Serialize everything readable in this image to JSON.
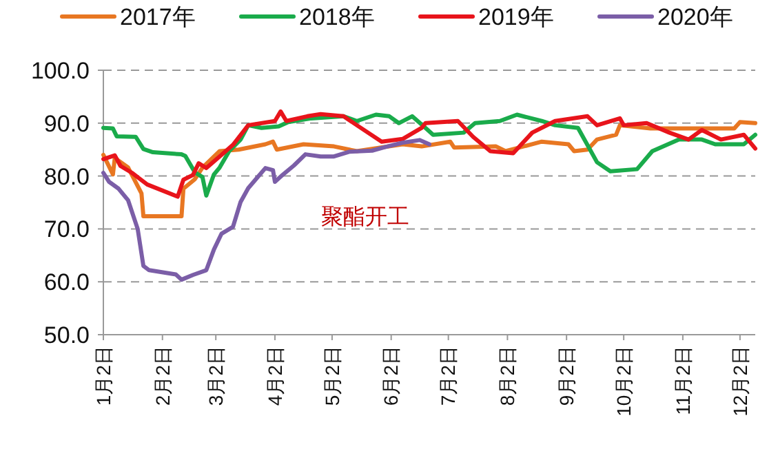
{
  "chart_data": {
    "type": "line",
    "annotations": [
      "聚酯开工"
    ],
    "legend": "top",
    "grid": "y",
    "line_style": "solid",
    "marker": "none",
    "xlim": [
      "--01-02",
      "--12-10"
    ],
    "xticks": [
      {
        "value": "--01-02",
        "label": "1月2日"
      },
      {
        "value": "--02-02",
        "label": "2月2日"
      },
      {
        "value": "--03-02",
        "label": "3月2日"
      },
      {
        "value": "--04-02",
        "label": "4月2日"
      },
      {
        "value": "--05-02",
        "label": "5月2日"
      },
      {
        "value": "--06-02",
        "label": "6月2日"
      },
      {
        "value": "--07-02",
        "label": "7月2日"
      },
      {
        "value": "--08-02",
        "label": "8月2日"
      },
      {
        "value": "--09-02",
        "label": "9月2日"
      },
      {
        "value": "--10-02",
        "label": "10月2日"
      },
      {
        "value": "--11-02",
        "label": "11月2日"
      },
      {
        "value": "--12-02",
        "label": "12月2日"
      }
    ],
    "ylim": [
      50,
      100
    ],
    "yticks": [
      {
        "value": 50,
        "label": "50.0"
      },
      {
        "value": 60,
        "label": "60.0"
      },
      {
        "value": 70,
        "label": "70.0"
      },
      {
        "value": 80,
        "label": "80.0"
      },
      {
        "value": 90,
        "label": "90.0"
      },
      {
        "value": 100,
        "label": "100.0"
      }
    ],
    "series": [
      {
        "name": "2017年",
        "color": "#e87722",
        "x": [
          "--01-02",
          "--01-07",
          "--01-08",
          "--01-15",
          "--01-22",
          "--01-23",
          "--02-12",
          "--02-13",
          "--02-19",
          "--02-23",
          "--03-04",
          "--03-14",
          "--03-28",
          "--04-01",
          "--04-03",
          "--04-17",
          "--05-03",
          "--05-15",
          "--06-08",
          "--06-18",
          "--07-03",
          "--07-05",
          "--07-27",
          "--08-01",
          "--08-20",
          "--09-03",
          "--09-06",
          "--09-13",
          "--09-18",
          "--09-28",
          "--09-30",
          "--10-16",
          "--11-29",
          "--12-02",
          "--12-10"
        ],
        "values": [
          84,
          80.3,
          83.4,
          81.6,
          76.7,
          72.4,
          72.4,
          77.6,
          79.4,
          81.6,
          84.7,
          85,
          86,
          86.5,
          85,
          86,
          85.6,
          84.7,
          86,
          85.6,
          86.5,
          85.4,
          85.6,
          84.7,
          86.5,
          86,
          84.7,
          85,
          86.9,
          87.8,
          89.6,
          89,
          89,
          90.2,
          90
        ]
      },
      {
        "name": "2018年",
        "color": "#1aab4b",
        "x": [
          "--01-02",
          "--01-07",
          "--01-09",
          "--01-19",
          "--01-23",
          "--01-28",
          "--02-12",
          "--02-14",
          "--02-19",
          "--02-23",
          "--02-25",
          "--03-01",
          "--03-04",
          "--03-09",
          "--03-15",
          "--03-19",
          "--03-26",
          "--04-04",
          "--04-09",
          "--04-21",
          "--05-08",
          "--05-15",
          "--05-25",
          "--06-01",
          "--06-06",
          "--06-13",
          "--06-20",
          "--06-24",
          "--07-10",
          "--07-16",
          "--07-29",
          "--08-07",
          "--08-20",
          "--08-27",
          "--09-08",
          "--09-18",
          "--09-25",
          "--10-09",
          "--10-17",
          "--10-31",
          "--11-12",
          "--11-19",
          "--12-04",
          "--12-10"
        ],
        "values": [
          89.1,
          89,
          87.5,
          87.4,
          85.1,
          84.5,
          84.1,
          83.8,
          80.7,
          79.8,
          76.3,
          80.3,
          81.6,
          84.7,
          86.9,
          89.6,
          89.1,
          89.4,
          90.2,
          90.9,
          91.3,
          90.4,
          91.6,
          91.3,
          90,
          91.3,
          89.1,
          87.8,
          88.2,
          90,
          90.4,
          91.6,
          90.4,
          89.6,
          89.1,
          82.6,
          80.9,
          81.3,
          84.7,
          86.9,
          86.9,
          86,
          86,
          87.8
        ]
      },
      {
        "name": "2019年",
        "color": "#e8141b",
        "x": [
          "--01-02",
          "--01-08",
          "--01-11",
          "--01-17",
          "--01-25",
          "--02-10",
          "--02-13",
          "--02-18",
          "--02-21",
          "--02-25",
          "--03-04",
          "--03-11",
          "--03-19",
          "--04-02",
          "--04-05",
          "--04-08",
          "--04-19",
          "--04-26",
          "--05-08",
          "--05-15",
          "--05-28",
          "--06-08",
          "--06-18",
          "--06-20",
          "--07-07",
          "--07-15",
          "--07-24",
          "--08-05",
          "--08-15",
          "--08-27",
          "--09-13",
          "--09-18",
          "--09-30",
          "--10-02",
          "--10-14",
          "--10-26",
          "--11-05",
          "--11-12",
          "--11-22",
          "--12-04",
          "--12-10"
        ],
        "values": [
          83.2,
          83.9,
          81.9,
          80.6,
          78.4,
          76.1,
          79.3,
          80.2,
          82.4,
          81.5,
          83.7,
          85.9,
          89.6,
          90.4,
          92.2,
          90.4,
          91.3,
          91.7,
          91.3,
          89.6,
          86.5,
          87,
          89.1,
          90,
          90.4,
          87.4,
          84.7,
          84.3,
          88.2,
          90.4,
          91.3,
          89.6,
          90.9,
          89.6,
          90,
          88.2,
          86.9,
          88.7,
          86.9,
          87.8,
          85.2
        ]
      },
      {
        "name": "2020年",
        "color": "#7b5ea7",
        "x": [
          "--01-02",
          "--01-05",
          "--01-10",
          "--01-15",
          "--01-20",
          "--01-23",
          "--01-26",
          "--02-09",
          "--02-12",
          "--02-18",
          "--02-25",
          "--03-01",
          "--03-05",
          "--03-11",
          "--03-15",
          "--03-19",
          "--03-23",
          "--03-28",
          "--04-01",
          "--04-02",
          "--04-06",
          "--04-12",
          "--04-18",
          "--04-26",
          "--05-03",
          "--05-11",
          "--05-23",
          "--05-30",
          "--06-08",
          "--06-17",
          "--06-22"
        ],
        "values": [
          80.6,
          78.9,
          77.6,
          75.4,
          70,
          63,
          62.2,
          61.4,
          60.4,
          61.3,
          62.2,
          66.1,
          69.1,
          70.4,
          75.1,
          77.7,
          79.4,
          81.5,
          81.1,
          78.9,
          80.2,
          82,
          84.1,
          83.7,
          83.7,
          84.6,
          84.8,
          85.5,
          86.3,
          86.8,
          86
        ]
      }
    ]
  }
}
